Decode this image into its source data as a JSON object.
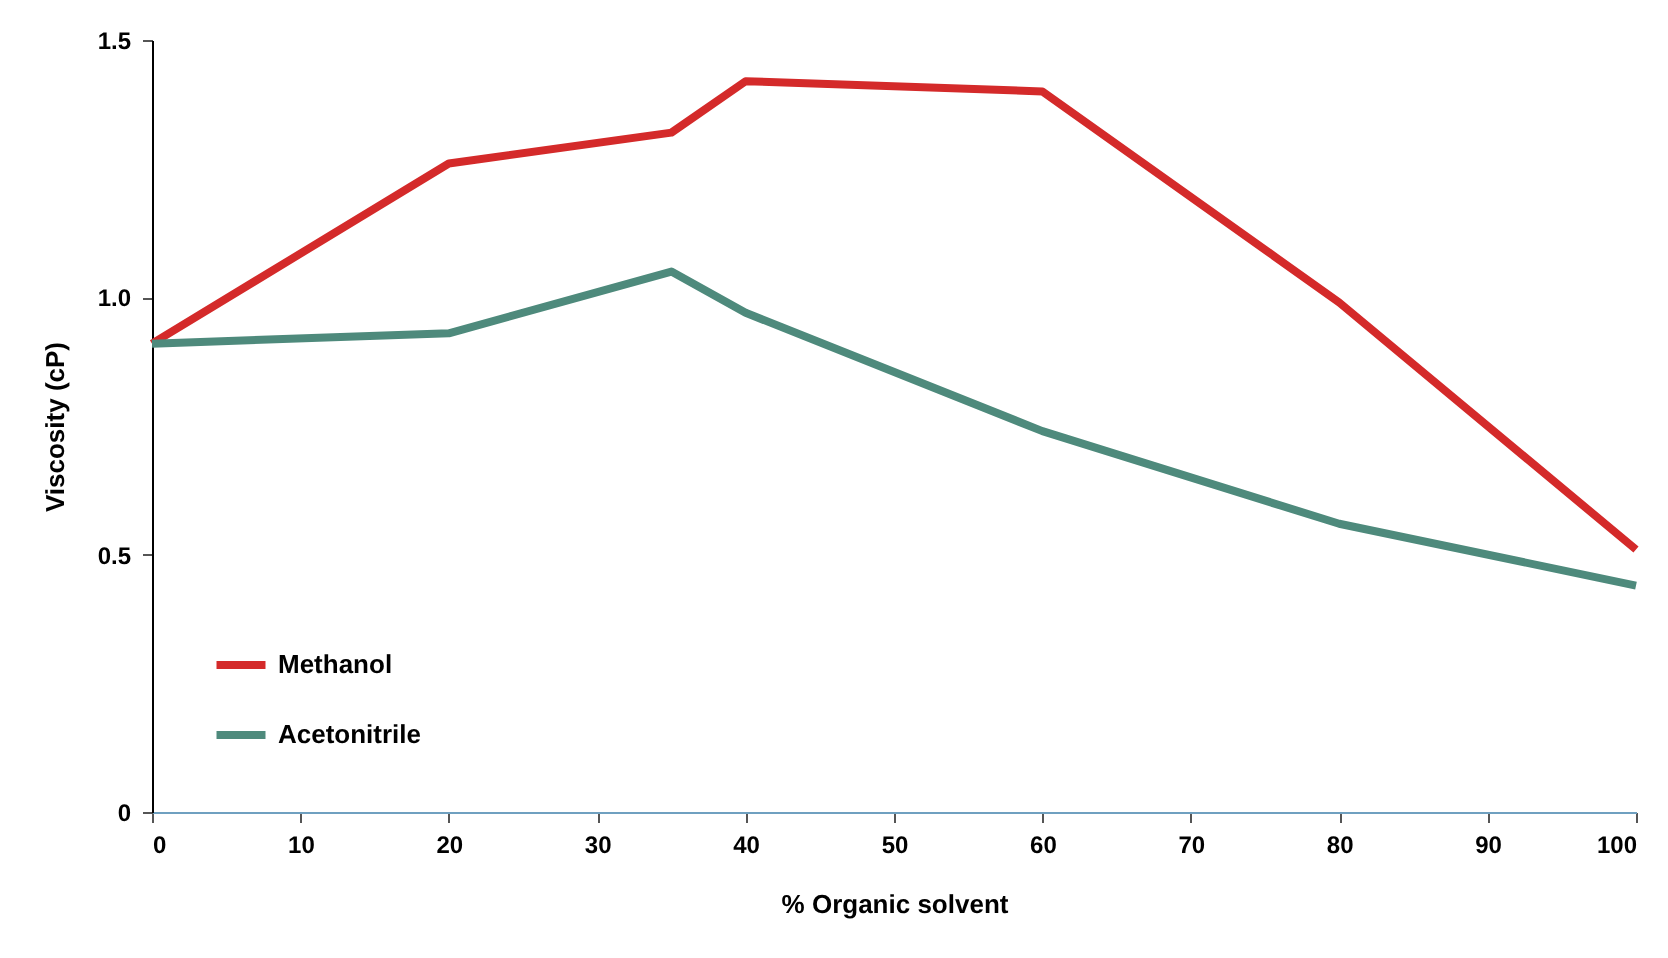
{
  "chart_data": {
    "type": "line",
    "xlabel": "% Organic solvent",
    "ylabel": "Viscosity (cP)",
    "xlim": [
      0,
      100
    ],
    "xticks": [
      0,
      10,
      20,
      30,
      40,
      50,
      60,
      70,
      80,
      90,
      100
    ],
    "ylim": [
      0,
      1.5
    ],
    "yticks": [
      0,
      {
        "value": 0.5,
        "label": "0.5"
      },
      {
        "value": 1,
        "label": "1.0"
      },
      {
        "value": 1.5,
        "label": "1.5"
      }
    ],
    "legend": "bottom left",
    "grid": false,
    "marker": "none",
    "line_style": "solid",
    "series": [
      {
        "name": "Methanol",
        "color": "#d42a2a",
        "x": [
          0,
          20,
          35,
          40,
          60,
          80,
          100
        ],
        "values": [
          0.91,
          1.26,
          1.32,
          1.42,
          1.4,
          0.99,
          0.51
        ]
      },
      {
        "name": "Acetonitrile",
        "color": "#4e8a7c",
        "x": [
          0,
          20,
          35,
          40,
          60,
          80,
          100
        ],
        "values": [
          0.91,
          0.93,
          1.05,
          0.97,
          0.74,
          0.56,
          0.44
        ]
      }
    ]
  }
}
